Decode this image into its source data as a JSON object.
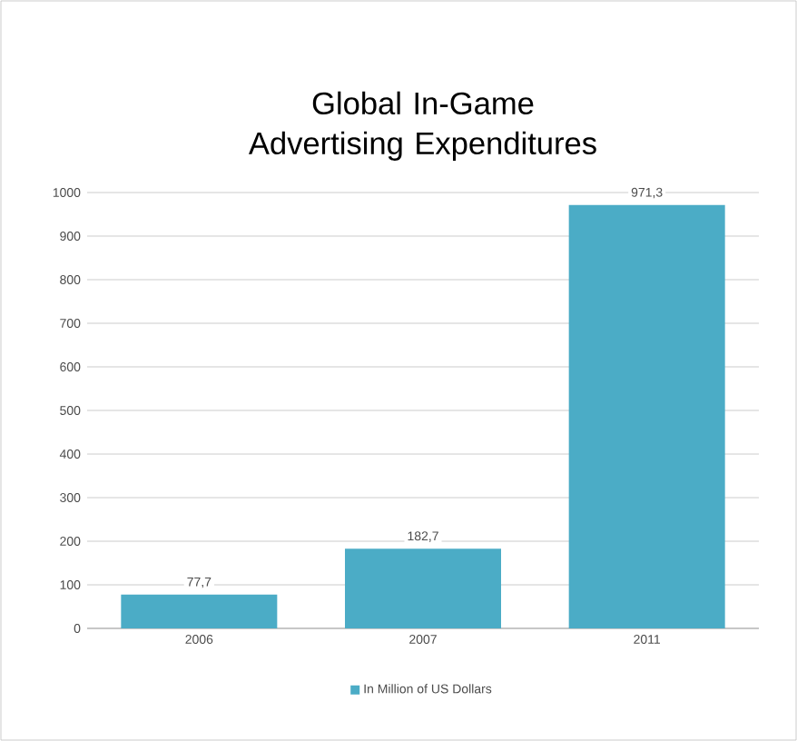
{
  "chart_data": {
    "type": "bar",
    "title": "Global In-Game Advertising Expenditures",
    "categories": [
      "2006",
      "2007",
      "2011"
    ],
    "series": [
      {
        "name": "In Million of US Dollars",
        "color": "#4bacc6",
        "values": [
          77.7,
          182.7,
          971.3
        ],
        "value_labels": [
          "77,7",
          "182,7",
          "971,3"
        ]
      }
    ],
    "ylim": [
      0,
      1000
    ],
    "yticks": [
      0,
      100,
      200,
      300,
      400,
      500,
      600,
      700,
      800,
      900,
      1000
    ],
    "grid": "y",
    "legend": "bottom"
  }
}
